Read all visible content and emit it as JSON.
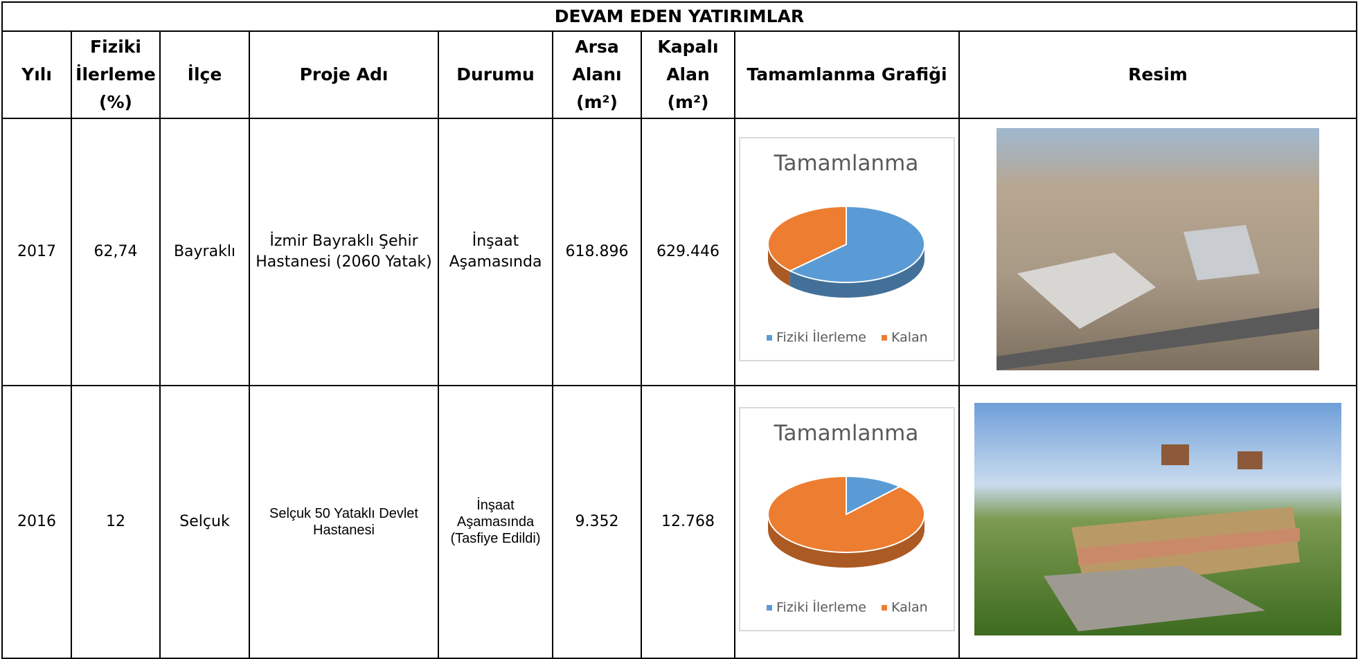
{
  "title": "DEVAM EDEN YATIRIMLAR",
  "headers": [
    "Yılı",
    "Fiziki İlerleme (%)",
    "İlçe",
    "Proje Adı",
    "Durumu",
    "Arsa Alanı (m²)",
    "Kapalı Alan (m²)",
    "Tamamlanma Grafiği",
    "Resim"
  ],
  "rows": [
    {
      "cells": [
        "2017",
        "62,74",
        "Bayraklı",
        "İzmir Bayraklı Şehir Hastanesi (2060 Yatak)",
        "İnşaat Aşamasında",
        "618.896",
        "629.446"
      ],
      "chart": {
        "type": "pie",
        "title": "Tamamlanma",
        "categories": [
          "Fiziki İlerleme",
          "Kalan"
        ],
        "values": [
          62.74,
          37.26
        ],
        "colors": [
          "#5b9bd5",
          "#ed7d31"
        ],
        "legend": "bottom"
      }
    },
    {
      "cells": [
        "2016",
        "12",
        "Selçuk",
        "Selçuk 50 Yataklı Devlet Hastanesi",
        "İnşaat Aşamasında (Tasfiye Edildi)",
        "9.352",
        "12.768"
      ],
      "chart": {
        "type": "pie",
        "title": "Tamamlanma",
        "categories": [
          "Fiziki İlerleme",
          "Kalan"
        ],
        "values": [
          12,
          88
        ],
        "colors": [
          "#5b9bd5",
          "#ed7d31"
        ],
        "legend": "bottom"
      }
    }
  ]
}
